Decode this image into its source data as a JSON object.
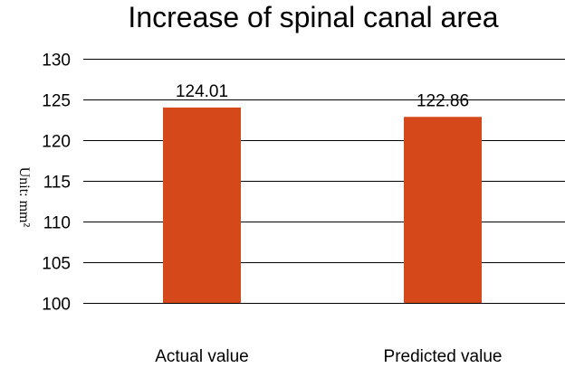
{
  "chart_data": {
    "type": "bar",
    "title": "Increase of spinal canal area",
    "ylabel": "Unit: mm²",
    "xlabel": "",
    "categories": [
      "Actual value",
      "Predicted value"
    ],
    "values": [
      124.01,
      122.86
    ],
    "data_labels": [
      "124.01",
      "122.86"
    ],
    "ylim": [
      100,
      130
    ],
    "yticks": [
      100,
      105,
      110,
      115,
      120,
      125,
      130
    ],
    "grid": true,
    "legend": "none",
    "bar_color": "#d5481a"
  }
}
